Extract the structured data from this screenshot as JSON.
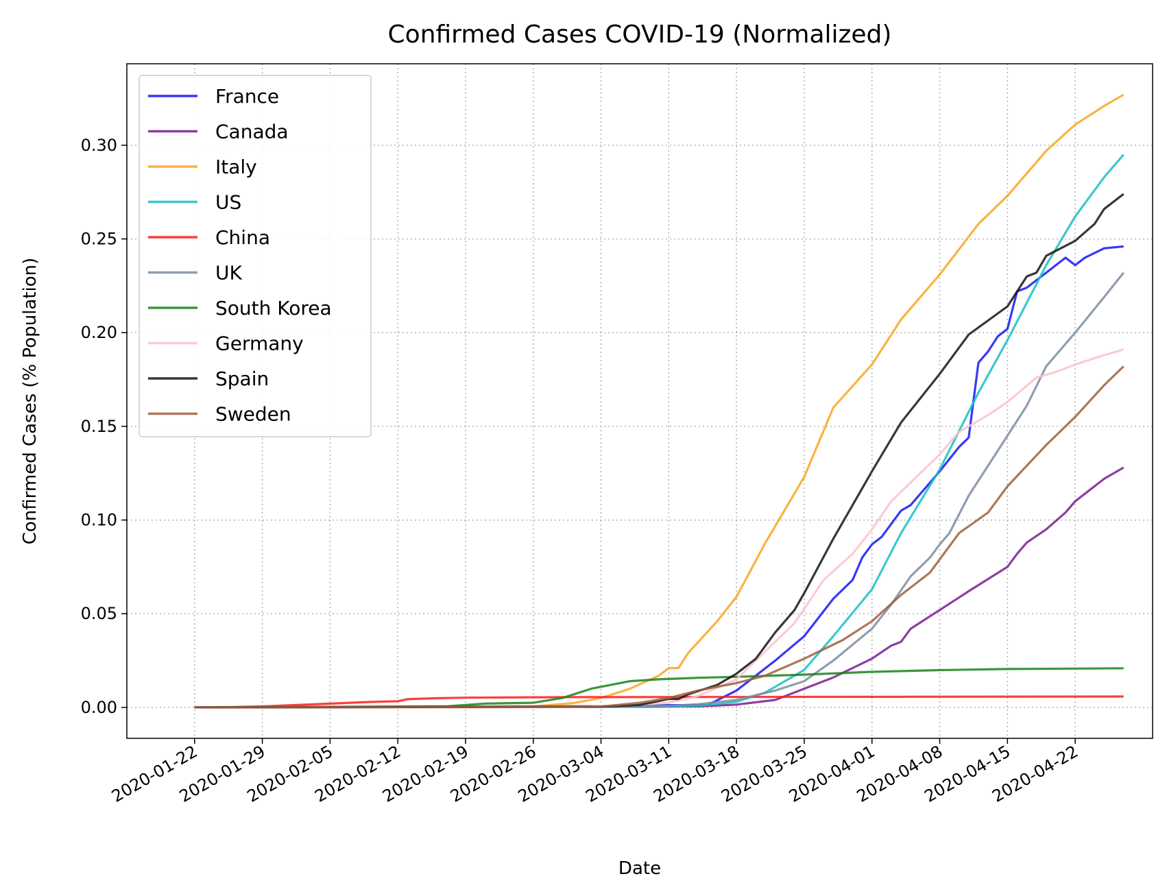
{
  "chart_data": {
    "type": "line",
    "title": "Confirmed Cases COVID-19 (Normalized)",
    "xlabel": "Date",
    "ylabel": "Confirmed Cases (% Population)",
    "x_start": "2020-01-22",
    "x_end": "2020-04-27",
    "xlim": [
      "2020-01-15",
      "2020-04-30"
    ],
    "ylim": [
      -0.0165,
      0.3435
    ],
    "x_ticks": [
      "2020-01-22",
      "2020-01-29",
      "2020-02-05",
      "2020-02-12",
      "2020-02-19",
      "2020-02-26",
      "2020-03-04",
      "2020-03-11",
      "2020-03-18",
      "2020-03-25",
      "2020-04-01",
      "2020-04-08",
      "2020-04-15",
      "2020-04-22"
    ],
    "y_ticks": [
      0.0,
      0.05,
      0.1,
      0.15,
      0.2,
      0.25,
      0.3
    ],
    "y_tick_labels": [
      "0.00",
      "0.05",
      "0.10",
      "0.15",
      "0.20",
      "0.25",
      "0.30"
    ],
    "grid": true,
    "legend_position": "top-left",
    "series": [
      {
        "name": "France",
        "color": "#1515f5",
        "points": [
          [
            "2020-01-22",
            0
          ],
          [
            "2020-03-04",
            0.0003
          ],
          [
            "2020-03-11",
            0.0012
          ],
          [
            "2020-03-15",
            0.0012
          ],
          [
            "2020-03-18",
            0.009
          ],
          [
            "2020-03-22",
            0.025
          ],
          [
            "2020-03-25",
            0.038
          ],
          [
            "2020-03-28",
            0.058
          ],
          [
            "2020-03-30",
            0.068
          ],
          [
            "2020-03-31",
            0.08
          ],
          [
            "2020-04-01",
            0.087
          ],
          [
            "2020-04-02",
            0.091
          ],
          [
            "2020-04-04",
            0.105
          ],
          [
            "2020-04-05",
            0.108
          ],
          [
            "2020-04-08",
            0.126
          ],
          [
            "2020-04-10",
            0.139
          ],
          [
            "2020-04-11",
            0.144
          ],
          [
            "2020-04-12",
            0.184
          ],
          [
            "2020-04-13",
            0.19
          ],
          [
            "2020-04-14",
            0.198
          ],
          [
            "2020-04-15",
            0.202
          ],
          [
            "2020-04-16",
            0.222
          ],
          [
            "2020-04-17",
            0.224
          ],
          [
            "2020-04-19",
            0.232
          ],
          [
            "2020-04-21",
            0.24
          ],
          [
            "2020-04-22",
            0.236
          ],
          [
            "2020-04-23",
            0.24
          ],
          [
            "2020-04-25",
            0.245
          ],
          [
            "2020-04-27",
            0.246
          ]
        ]
      },
      {
        "name": "Canada",
        "color": "#7b1b8f",
        "points": [
          [
            "2020-01-22",
            0
          ],
          [
            "2020-03-14",
            0.0005
          ],
          [
            "2020-03-18",
            0.0015
          ],
          [
            "2020-03-22",
            0.004
          ],
          [
            "2020-03-25",
            0.01
          ],
          [
            "2020-03-28",
            0.016
          ],
          [
            "2020-04-01",
            0.026
          ],
          [
            "2020-04-03",
            0.033
          ],
          [
            "2020-04-04",
            0.035
          ],
          [
            "2020-04-05",
            0.042
          ],
          [
            "2020-04-08",
            0.052
          ],
          [
            "2020-04-11",
            0.062
          ],
          [
            "2020-04-15",
            0.075
          ],
          [
            "2020-04-16",
            0.082
          ],
          [
            "2020-04-17",
            0.088
          ],
          [
            "2020-04-19",
            0.095
          ],
          [
            "2020-04-21",
            0.104
          ],
          [
            "2020-04-22",
            0.11
          ],
          [
            "2020-04-25",
            0.122
          ],
          [
            "2020-04-27",
            0.128
          ]
        ]
      },
      {
        "name": "Italy",
        "color": "#f9a61e",
        "points": [
          [
            "2020-01-22",
            0
          ],
          [
            "2020-02-22",
            0.0001
          ],
          [
            "2020-02-26",
            0.0006
          ],
          [
            "2020-03-01",
            0.0022
          ],
          [
            "2020-03-04",
            0.005
          ],
          [
            "2020-03-07",
            0.01
          ],
          [
            "2020-03-10",
            0.017
          ],
          [
            "2020-03-11",
            0.021
          ],
          [
            "2020-03-12",
            0.021
          ],
          [
            "2020-03-13",
            0.029
          ],
          [
            "2020-03-16",
            0.046
          ],
          [
            "2020-03-18",
            0.059
          ],
          [
            "2020-03-21",
            0.088
          ],
          [
            "2020-03-25",
            0.123
          ],
          [
            "2020-03-28",
            0.16
          ],
          [
            "2020-04-01",
            0.183
          ],
          [
            "2020-04-04",
            0.207
          ],
          [
            "2020-04-08",
            0.231
          ],
          [
            "2020-04-12",
            0.258
          ],
          [
            "2020-04-15",
            0.273
          ],
          [
            "2020-04-19",
            0.297
          ],
          [
            "2020-04-22",
            0.311
          ],
          [
            "2020-04-25",
            0.321
          ],
          [
            "2020-04-27",
            0.327
          ]
        ]
      },
      {
        "name": "US",
        "color": "#17bfc3",
        "points": [
          [
            "2020-01-22",
            0
          ],
          [
            "2020-03-10",
            0.0003
          ],
          [
            "2020-03-14",
            0.0008
          ],
          [
            "2020-03-18",
            0.003
          ],
          [
            "2020-03-21",
            0.008
          ],
          [
            "2020-03-25",
            0.02
          ],
          [
            "2020-03-28",
            0.038
          ],
          [
            "2020-04-01",
            0.063
          ],
          [
            "2020-04-04",
            0.093
          ],
          [
            "2020-04-08",
            0.127
          ],
          [
            "2020-04-12",
            0.168
          ],
          [
            "2020-04-15",
            0.196
          ],
          [
            "2020-04-19",
            0.236
          ],
          [
            "2020-04-22",
            0.262
          ],
          [
            "2020-04-25",
            0.283
          ],
          [
            "2020-04-27",
            0.295
          ]
        ]
      },
      {
        "name": "China",
        "color": "#fd1c1c",
        "points": [
          [
            "2020-01-22",
            0
          ],
          [
            "2020-01-26",
            0.0002
          ],
          [
            "2020-01-29",
            0.0005
          ],
          [
            "2020-02-02",
            0.0014
          ],
          [
            "2020-02-05",
            0.002
          ],
          [
            "2020-02-09",
            0.0029
          ],
          [
            "2020-02-12",
            0.0033
          ],
          [
            "2020-02-13",
            0.0044
          ],
          [
            "2020-02-16",
            0.0049
          ],
          [
            "2020-02-19",
            0.0052
          ],
          [
            "2020-03-01",
            0.0055
          ],
          [
            "2020-04-27",
            0.0058
          ]
        ]
      },
      {
        "name": "UK",
        "color": "#7d8ca2",
        "points": [
          [
            "2020-01-22",
            0
          ],
          [
            "2020-03-11",
            0.0008
          ],
          [
            "2020-03-14",
            0.0017
          ],
          [
            "2020-03-18",
            0.004
          ],
          [
            "2020-03-22",
            0.009
          ],
          [
            "2020-03-25",
            0.014
          ],
          [
            "2020-03-28",
            0.025
          ],
          [
            "2020-04-01",
            0.042
          ],
          [
            "2020-04-03",
            0.055
          ],
          [
            "2020-04-05",
            0.07
          ],
          [
            "2020-04-07",
            0.08
          ],
          [
            "2020-04-08",
            0.087
          ],
          [
            "2020-04-09",
            0.093
          ],
          [
            "2020-04-10",
            0.103
          ],
          [
            "2020-04-11",
            0.113
          ],
          [
            "2020-04-15",
            0.145
          ],
          [
            "2020-04-17",
            0.161
          ],
          [
            "2020-04-19",
            0.182
          ],
          [
            "2020-04-22",
            0.2
          ],
          [
            "2020-04-25",
            0.219
          ],
          [
            "2020-04-27",
            0.232
          ]
        ]
      },
      {
        "name": "South Korea",
        "color": "#188419",
        "points": [
          [
            "2020-01-22",
            0
          ],
          [
            "2020-02-17",
            0.0006
          ],
          [
            "2020-02-21",
            0.002
          ],
          [
            "2020-02-26",
            0.0025
          ],
          [
            "2020-02-29",
            0.005
          ],
          [
            "2020-03-03",
            0.01
          ],
          [
            "2020-03-05",
            0.012
          ],
          [
            "2020-03-07",
            0.014
          ],
          [
            "2020-03-10",
            0.015
          ],
          [
            "2020-03-14",
            0.0158
          ],
          [
            "2020-03-18",
            0.0163
          ],
          [
            "2020-03-25",
            0.0175
          ],
          [
            "2020-04-01",
            0.019
          ],
          [
            "2020-04-08",
            0.0199
          ],
          [
            "2020-04-15",
            0.0205
          ],
          [
            "2020-04-27",
            0.0209
          ]
        ]
      },
      {
        "name": "Germany",
        "color": "#fbc2cb",
        "points": [
          [
            "2020-01-22",
            0
          ],
          [
            "2020-03-01",
            0.0001
          ],
          [
            "2020-03-07",
            0.0012
          ],
          [
            "2020-03-11",
            0.0025
          ],
          [
            "2020-03-14",
            0.006
          ],
          [
            "2020-03-18",
            0.015
          ],
          [
            "2020-03-21",
            0.03
          ],
          [
            "2020-03-24",
            0.045
          ],
          [
            "2020-03-27",
            0.068
          ],
          [
            "2020-03-30",
            0.082
          ],
          [
            "2020-04-01",
            0.095
          ],
          [
            "2020-04-03",
            0.11
          ],
          [
            "2020-04-05",
            0.12
          ],
          [
            "2020-04-08",
            0.135
          ],
          [
            "2020-04-10",
            0.147
          ],
          [
            "2020-04-13",
            0.156
          ],
          [
            "2020-04-15",
            0.163
          ],
          [
            "2020-04-18",
            0.176
          ],
          [
            "2020-04-20",
            0.179
          ],
          [
            "2020-04-22",
            0.183
          ],
          [
            "2020-04-25",
            0.188
          ],
          [
            "2020-04-27",
            0.191
          ]
        ]
      },
      {
        "name": "Spain",
        "color": "#141414",
        "points": [
          [
            "2020-01-22",
            0
          ],
          [
            "2020-03-04",
            0.0004
          ],
          [
            "2020-03-08",
            0.0013
          ],
          [
            "2020-03-11",
            0.0045
          ],
          [
            "2020-03-12",
            0.0045
          ],
          [
            "2020-03-13",
            0.007
          ],
          [
            "2020-03-16",
            0.012
          ],
          [
            "2020-03-18",
            0.018
          ],
          [
            "2020-03-20",
            0.026
          ],
          [
            "2020-03-22",
            0.04
          ],
          [
            "2020-03-24",
            0.052
          ],
          [
            "2020-03-25",
            0.061
          ],
          [
            "2020-03-28",
            0.09
          ],
          [
            "2020-04-01",
            0.126
          ],
          [
            "2020-04-04",
            0.152
          ],
          [
            "2020-04-08",
            0.178
          ],
          [
            "2020-04-11",
            0.199
          ],
          [
            "2020-04-15",
            0.214
          ],
          [
            "2020-04-17",
            0.23
          ],
          [
            "2020-04-18",
            0.232
          ],
          [
            "2020-04-19",
            0.241
          ],
          [
            "2020-04-22",
            0.249
          ],
          [
            "2020-04-24",
            0.258
          ],
          [
            "2020-04-25",
            0.266
          ],
          [
            "2020-04-27",
            0.274
          ]
        ]
      },
      {
        "name": "Sweden",
        "color": "#a05e3c",
        "points": [
          [
            "2020-01-22",
            0
          ],
          [
            "2020-03-04",
            0.0004
          ],
          [
            "2020-03-08",
            0.0025
          ],
          [
            "2020-03-11",
            0.005
          ],
          [
            "2020-03-14",
            0.009
          ],
          [
            "2020-03-18",
            0.013
          ],
          [
            "2020-03-21",
            0.017
          ],
          [
            "2020-03-25",
            0.026
          ],
          [
            "2020-03-29",
            0.036
          ],
          [
            "2020-04-01",
            0.046
          ],
          [
            "2020-04-04",
            0.06
          ],
          [
            "2020-04-07",
            0.072
          ],
          [
            "2020-04-10",
            0.093
          ],
          [
            "2020-04-13",
            0.104
          ],
          [
            "2020-04-15",
            0.118
          ],
          [
            "2020-04-19",
            0.14
          ],
          [
            "2020-04-22",
            0.155
          ],
          [
            "2020-04-25",
            0.172
          ],
          [
            "2020-04-27",
            0.182
          ]
        ]
      }
    ]
  }
}
